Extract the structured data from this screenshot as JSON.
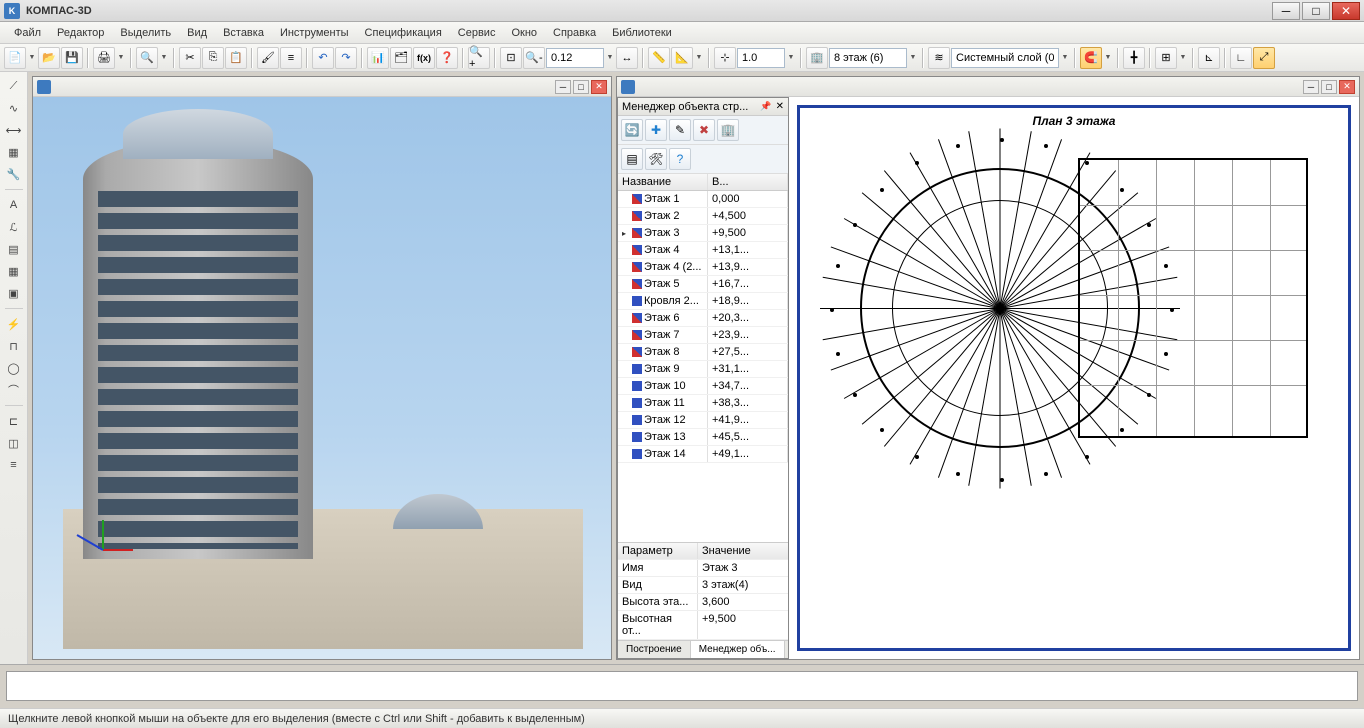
{
  "app": {
    "title": "КОМПАС-3D"
  },
  "menu": {
    "items": [
      "Файл",
      "Редактор",
      "Выделить",
      "Вид",
      "Вставка",
      "Инструменты",
      "Спецификация",
      "Сервис",
      "Окно",
      "Справка",
      "Библиотеки"
    ]
  },
  "toolbar": {
    "zoom_value": "0.12",
    "scale_value": "1.0",
    "floor_value": "8 этаж (6)",
    "layer_value": "Системный слой (0)"
  },
  "manager": {
    "title": "Менеджер объекта стр...",
    "columns": {
      "name": "Название",
      "value": "В..."
    },
    "rows": [
      {
        "icon": "r",
        "name": "Этаж 1",
        "value": "0,000",
        "active": false
      },
      {
        "icon": "r",
        "name": "Этаж 2",
        "value": "+4,500",
        "active": false
      },
      {
        "icon": "r",
        "name": "Этаж 3",
        "value": "+9,500",
        "active": true
      },
      {
        "icon": "r",
        "name": "Этаж 4",
        "value": "+13,1...",
        "active": false
      },
      {
        "icon": "r",
        "name": "Этаж 4 (2...",
        "value": "+13,9...",
        "active": false
      },
      {
        "icon": "r",
        "name": "Этаж 5",
        "value": "+16,7...",
        "active": false
      },
      {
        "icon": "b",
        "name": "Кровля 2...",
        "value": "+18,9...",
        "active": false
      },
      {
        "icon": "r",
        "name": "Этаж 6",
        "value": "+20,3...",
        "active": false
      },
      {
        "icon": "r",
        "name": "Этаж 7",
        "value": "+23,9...",
        "active": false
      },
      {
        "icon": "r",
        "name": "Этаж 8",
        "value": "+27,5...",
        "active": false
      },
      {
        "icon": "b",
        "name": "Этаж 9",
        "value": "+31,1...",
        "active": false
      },
      {
        "icon": "b",
        "name": "Этаж 10",
        "value": "+34,7...",
        "active": false
      },
      {
        "icon": "b",
        "name": "Этаж 11",
        "value": "+38,3...",
        "active": false
      },
      {
        "icon": "b",
        "name": "Этаж 12",
        "value": "+41,9...",
        "active": false
      },
      {
        "icon": "b",
        "name": "Этаж 13",
        "value": "+45,5...",
        "active": false
      },
      {
        "icon": "b",
        "name": "Этаж 14",
        "value": "+49,1...",
        "active": false
      }
    ],
    "params_header": {
      "param": "Параметр",
      "value": "Значение"
    },
    "params": [
      {
        "k": "Имя",
        "v": "Этаж 3"
      },
      {
        "k": "Вид",
        "v": "3 этаж(4)"
      },
      {
        "k": "Высота эта...",
        "v": "3,600"
      },
      {
        "k": "Высотная от...",
        "v": "+9,500"
      }
    ],
    "tabs": {
      "build": "Построение",
      "manager": "Менеджер объ..."
    }
  },
  "plan": {
    "title": "План 3 этажа"
  },
  "status": {
    "text": "Щелкните левой кнопкой мыши на объекте для его выделения (вместе с Ctrl или Shift - добавить к выделенным)"
  },
  "colors": {
    "titlebar_bg": "#e8e8e8",
    "close_btn": "#c8382c",
    "sky_top": "#9fc5e8",
    "frame_blue": "#2040a0",
    "accent": "#3d7abf"
  }
}
